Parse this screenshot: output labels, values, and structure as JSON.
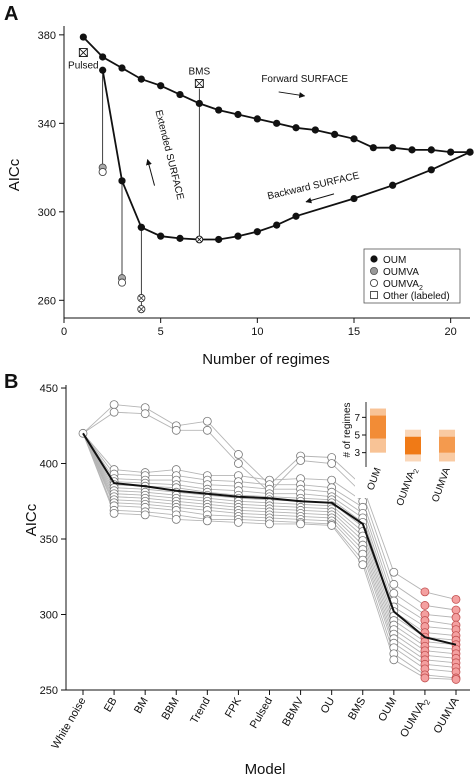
{
  "chart_data": [
    {
      "type": "line",
      "panel_letter": "A",
      "xlabel": "Number of regimes",
      "ylabel": "AICc",
      "xlim": [
        0,
        21
      ],
      "ylim": [
        252,
        384
      ],
      "xticks": [
        0,
        5,
        10,
        15,
        20
      ],
      "yticks": [
        260,
        300,
        340,
        380
      ],
      "grid": false,
      "series": [
        {
          "name": "Forward SURFACE",
          "x": [
            1,
            2,
            3,
            4,
            5,
            6,
            7,
            8,
            9,
            10,
            11,
            12,
            13,
            14,
            15,
            16,
            17,
            18,
            19,
            20,
            21
          ],
          "y": [
            379,
            370,
            365,
            360,
            357,
            353,
            349,
            346,
            344,
            342,
            340,
            338,
            337,
            335,
            333,
            329,
            329,
            328,
            328,
            327,
            327
          ]
        },
        {
          "name": "Extended SURFACE",
          "x": [
            2,
            3,
            4
          ],
          "y": [
            364,
            314,
            293
          ]
        },
        {
          "name": "Backward SURFACE",
          "x": [
            4,
            5,
            6,
            7,
            8,
            9,
            10,
            11,
            12,
            15,
            17,
            19,
            21
          ],
          "y": [
            293,
            289,
            288,
            287.5,
            287.5,
            289,
            291,
            294,
            298,
            306,
            312,
            319,
            327
          ]
        }
      ],
      "drops": [
        {
          "x": 2,
          "from": 364,
          "markers": [
            {
              "y": 320,
              "type": "OUMVA"
            },
            {
              "y": 318,
              "type": "OUMVA2"
            }
          ]
        },
        {
          "x": 3,
          "from": 314,
          "markers": [
            {
              "y": 270,
              "type": "OUMVA"
            },
            {
              "y": 268,
              "type": "OUMVA2"
            }
          ]
        },
        {
          "x": 4,
          "from": 293,
          "markers": [
            {
              "y": 261,
              "type": "Other"
            },
            {
              "y": 256,
              "type": "Other"
            }
          ]
        }
      ],
      "labeled_points": [
        {
          "label": "Pulsed",
          "x": 1,
          "y": 372,
          "type": "Other"
        },
        {
          "label": "BMS",
          "x": 7,
          "y": 358,
          "type": "Other"
        }
      ],
      "annotations": [
        {
          "text": "Forward SURFACE",
          "x": 14,
          "y": 356,
          "arrow": "right"
        },
        {
          "text": "Extended SURFACE",
          "x": 5.2,
          "y": 320,
          "arrow": "up",
          "rotated": true
        },
        {
          "text": "Backward SURFACE",
          "x": 15,
          "y": 314,
          "arrow": "left"
        }
      ],
      "legend": {
        "placement": "bottom-right",
        "entries": [
          {
            "label": "OUM",
            "marker": "filled-black"
          },
          {
            "label": "OUMVA",
            "marker": "filled-gray"
          },
          {
            "label": "OUMVA",
            "sub": "2",
            "marker": "open-circle"
          },
          {
            "label": "Other (labeled)",
            "marker": "open-square"
          }
        ]
      }
    },
    {
      "type": "line",
      "panel_letter": "B",
      "xlabel": "Model",
      "ylabel": "AICc",
      "categories": [
        "White noise",
        "EB",
        "BM",
        "BBM",
        "Trend",
        "FPK",
        "Pulsed",
        "BBMV",
        "OU",
        "BMS",
        "OUM",
        "OUMVA2",
        "OUMVA"
      ],
      "category_labels": [
        {
          "text": "White noise"
        },
        {
          "text": "EB"
        },
        {
          "text": "BM"
        },
        {
          "text": "BBM"
        },
        {
          "text": "Trend"
        },
        {
          "text": "FPK"
        },
        {
          "text": "Pulsed"
        },
        {
          "text": "BBMV"
        },
        {
          "text": "OU"
        },
        {
          "text": "BMS"
        },
        {
          "text": "OUM"
        },
        {
          "text": "OUMVA",
          "sub": "2"
        },
        {
          "text": "OUMVA"
        }
      ],
      "ylim": [
        250,
        452
      ],
      "yticks": [
        250,
        300,
        350,
        400,
        450
      ],
      "grid": false,
      "mean": [
        420,
        387,
        385,
        382,
        380,
        378,
        377,
        375,
        374,
        360,
        302,
        285,
        280
      ],
      "series": [
        {
          "values": [
            420,
            439,
            437,
            425,
            428,
            406,
            386,
            405,
            404,
            385,
            328,
            315,
            310
          ]
        },
        {
          "values": [
            420,
            434,
            433,
            422,
            422,
            400,
            381,
            402,
            400,
            380,
            320,
            306,
            303
          ]
        },
        {
          "values": [
            420,
            396,
            394,
            396,
            392,
            392,
            389,
            390,
            389,
            375,
            314,
            300,
            298
          ]
        },
        {
          "values": [
            420,
            393,
            392,
            392,
            389,
            388,
            386,
            386,
            384,
            371,
            309,
            296,
            293
          ]
        },
        {
          "values": [
            420,
            390,
            389,
            389,
            386,
            385,
            383,
            383,
            381,
            367,
            305,
            292,
            290
          ]
        },
        {
          "values": [
            420,
            388,
            387,
            386,
            383,
            382,
            380,
            380,
            378,
            364,
            302,
            288,
            286
          ]
        },
        {
          "values": [
            420,
            386,
            385,
            384,
            381,
            379,
            378,
            377,
            376,
            361,
            299,
            285,
            283
          ]
        },
        {
          "values": [
            420,
            384,
            383,
            381,
            379,
            377,
            376,
            375,
            374,
            358,
            296,
            282,
            280
          ]
        },
        {
          "values": [
            420,
            382,
            381,
            379,
            377,
            375,
            374,
            373,
            372,
            355,
            293,
            279,
            277
          ]
        },
        {
          "values": [
            420,
            380,
            379,
            377,
            375,
            373,
            372,
            371,
            370,
            352,
            290,
            276,
            274
          ]
        },
        {
          "values": [
            420,
            378,
            377,
            375,
            373,
            371,
            370,
            369,
            368,
            349,
            287,
            273,
            271
          ]
        },
        {
          "values": [
            420,
            376,
            375,
            373,
            371,
            369,
            368,
            367,
            366,
            346,
            284,
            270,
            268
          ]
        },
        {
          "values": [
            420,
            374,
            373,
            371,
            369,
            367,
            366,
            365,
            364,
            343,
            281,
            267,
            265
          ]
        },
        {
          "values": [
            420,
            372,
            371,
            369,
            366,
            365,
            364,
            363,
            362,
            340,
            278,
            264,
            262
          ]
        },
        {
          "values": [
            420,
            369,
            368,
            366,
            363,
            363,
            362,
            361,
            360,
            336,
            274,
            260,
            258
          ]
        },
        {
          "values": [
            420,
            367,
            366,
            363,
            362,
            361,
            360,
            360,
            359,
            333,
            270,
            258,
            257
          ]
        }
      ],
      "inset": {
        "type": "heatmap",
        "ylabel": "# of regimes",
        "categories": [
          "OUM",
          "OUMVA2",
          "OUMVA"
        ],
        "category_labels": [
          {
            "text": "OUM"
          },
          {
            "text": "OUMVA",
            "sub": "2"
          },
          {
            "text": "OUMVA"
          }
        ],
        "yticks": [
          3,
          5,
          7
        ],
        "ylim": [
          1.6,
          8.4
        ],
        "color": "#f07a16",
        "cells": [
          {
            "col": 0,
            "lo": 3.0,
            "hi": 8.0,
            "intensity": 0.45
          },
          {
            "col": 0,
            "lo": 4.6,
            "hi": 7.2,
            "intensity": 0.75
          },
          {
            "col": 1,
            "lo": 2.0,
            "hi": 5.6,
            "intensity": 0.3
          },
          {
            "col": 1,
            "lo": 2.8,
            "hi": 4.8,
            "intensity": 1.0
          },
          {
            "col": 2,
            "lo": 2.0,
            "hi": 5.6,
            "intensity": 0.4
          },
          {
            "col": 2,
            "lo": 3.0,
            "hi": 4.8,
            "intensity": 0.6
          }
        ]
      }
    }
  ]
}
